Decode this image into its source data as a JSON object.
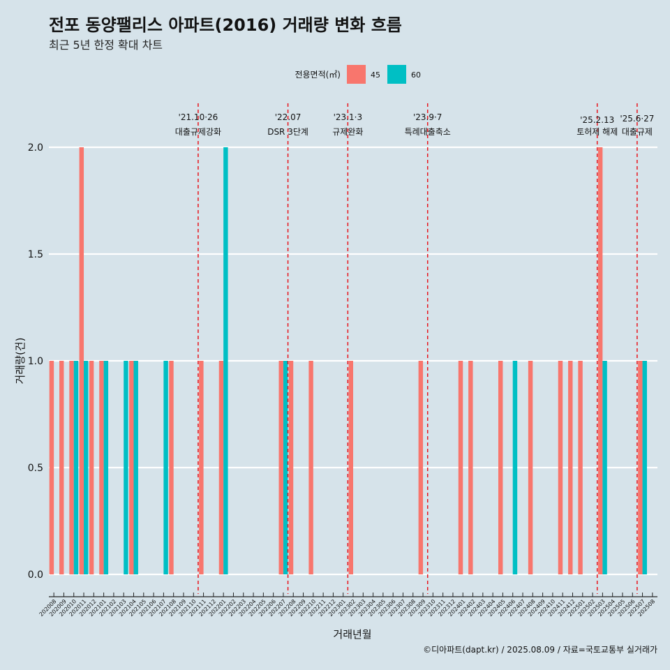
{
  "chart_data": {
    "type": "bar",
    "title": "전포 동양팰리스 아파트(2016) 거래량 변화 흐름",
    "subtitle": "최근 5년 한정 확대 차트",
    "xlabel": "거래년월",
    "ylabel": "거래량(건)",
    "ylim": [
      0,
      2
    ],
    "yticks": [
      "0.0",
      "0.5",
      "1.0",
      "1.5",
      "2.0"
    ],
    "grid": true,
    "legend": {
      "title": "전용면적(㎡)",
      "position": "top"
    },
    "categories": [
      "202008",
      "202009",
      "202010",
      "202011",
      "202012",
      "202101",
      "202102",
      "202103",
      "202104",
      "202105",
      "202106",
      "202107",
      "202108",
      "202109",
      "202110",
      "202111",
      "202112",
      "202201",
      "202202",
      "202203",
      "202204",
      "202205",
      "202206",
      "202207",
      "202208",
      "202209",
      "202210",
      "202211",
      "202212",
      "202301",
      "202302",
      "202303",
      "202304",
      "202305",
      "202306",
      "202307",
      "202308",
      "202309",
      "202310",
      "202311",
      "202312",
      "202401",
      "202402",
      "202403",
      "202404",
      "202405",
      "202406",
      "202407",
      "202408",
      "202409",
      "202410",
      "202411",
      "202412",
      "202501",
      "202502",
      "202503",
      "202504",
      "202505",
      "202506",
      "202507",
      "202508"
    ],
    "series": [
      {
        "name": "45",
        "color": "#f8766d",
        "values": [
          1,
          1,
          1,
          2,
          1,
          1,
          0,
          0,
          1,
          0,
          0,
          0,
          1,
          0,
          0,
          1,
          0,
          1,
          0,
          0,
          0,
          0,
          0,
          1,
          1,
          0,
          1,
          0,
          0,
          0,
          1,
          0,
          0,
          0,
          0,
          0,
          0,
          1,
          0,
          0,
          0,
          1,
          1,
          0,
          0,
          1,
          0,
          0,
          1,
          0,
          0,
          1,
          1,
          1,
          0,
          2,
          0,
          0,
          0,
          1,
          0
        ]
      },
      {
        "name": "60",
        "color": "#00bfc4",
        "values": [
          0,
          0,
          1,
          1,
          0,
          1,
          0,
          1,
          1,
          0,
          0,
          1,
          0,
          0,
          0,
          0,
          0,
          2,
          0,
          0,
          0,
          0,
          0,
          1,
          0,
          0,
          0,
          0,
          0,
          0,
          0,
          0,
          0,
          0,
          0,
          0,
          0,
          0,
          0,
          0,
          0,
          0,
          0,
          0,
          0,
          0,
          1,
          0,
          0,
          0,
          0,
          0,
          0,
          0,
          0,
          1,
          0,
          0,
          0,
          1,
          0
        ]
      }
    ],
    "events": [
      {
        "date": "'21.10·26",
        "label": "대출규제강화",
        "month": "202110"
      },
      {
        "date": "'22.07",
        "label": "DSR 3단계",
        "month": "202207"
      },
      {
        "date": "'23.1·3",
        "label": "규제완화",
        "month": "202301"
      },
      {
        "date": "'23.9·7",
        "label": "특례대출축소",
        "month": "202309"
      },
      {
        "date": "'25.2.13",
        "label": "토허제 해제",
        "month": "202502"
      },
      {
        "date": "'25.6·27",
        "label": "대출규제",
        "month": "202506"
      }
    ],
    "event_line_color": "#e8141c"
  },
  "caption": "©디아파트(dapt.kr) / 2025.08.09 / 자료=국토교통부 실거래가"
}
